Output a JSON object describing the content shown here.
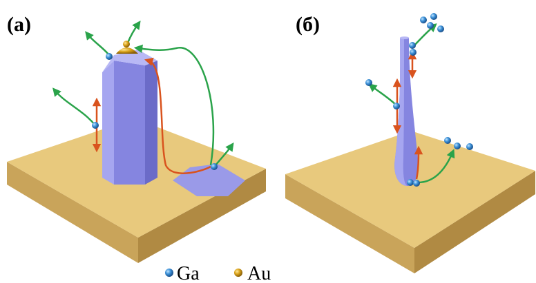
{
  "panels": [
    {
      "label": "(a)"
    },
    {
      "label": "(б)"
    }
  ],
  "legend": [
    {
      "label": "Ga"
    },
    {
      "label": "Au"
    }
  ]
}
